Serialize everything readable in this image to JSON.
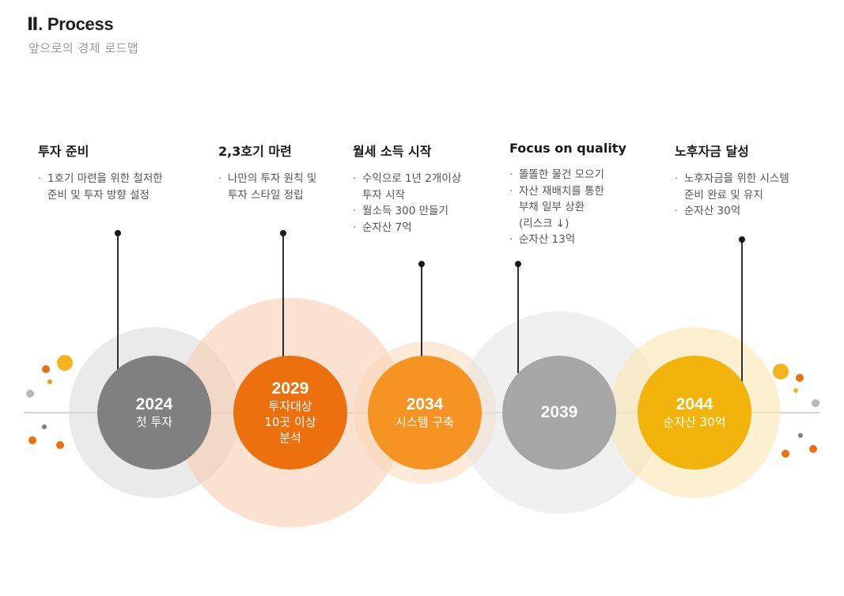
{
  "header": {
    "title": "Ⅱ. Process",
    "subtitle": "앞으로의 경제 로드맵"
  },
  "stages": [
    {
      "title": "투자 준비",
      "bullets": [
        "1호기 마련을 위한 철저한",
        "준비 및 투자 방향 설정"
      ],
      "year": "2024",
      "desc_lines": [
        "첫 투자"
      ],
      "color": "#808080"
    },
    {
      "title": "2,3호기 마련",
      "bullets": [
        "나만의 투자 원칙 및",
        "투자 스타일 정립"
      ],
      "year": "2029",
      "desc_lines": [
        "투자대상",
        "10곳 이상",
        "분석"
      ],
      "color": "#ED700F"
    },
    {
      "title": "월세 소득 시작",
      "bullets": [
        "수익으로 1년 2개이상",
        "투자 시작",
        "월소득 300 만들기",
        "순자산 7억"
      ],
      "year": "2034",
      "desc_lines": [
        "시스템 구축"
      ],
      "color": "#F59423"
    },
    {
      "title": "Focus on quality",
      "bullets": [
        "똘똘한 물건 모으기",
        "자산 재배치를 통한",
        "부채 일부 상환",
        "(리스크 ↓)",
        "순자산 13억"
      ],
      "year": "2039",
      "desc_lines": [],
      "color": "#A6A6A6"
    },
    {
      "title": "노후자금 달성",
      "bullets": [
        "노후자금을 위한 시스템",
        "준비 완료 및 유지",
        "순자산 30억"
      ],
      "year": "2044",
      "desc_lines": [
        "순자산 30억"
      ],
      "color": "#F2B40A"
    }
  ]
}
